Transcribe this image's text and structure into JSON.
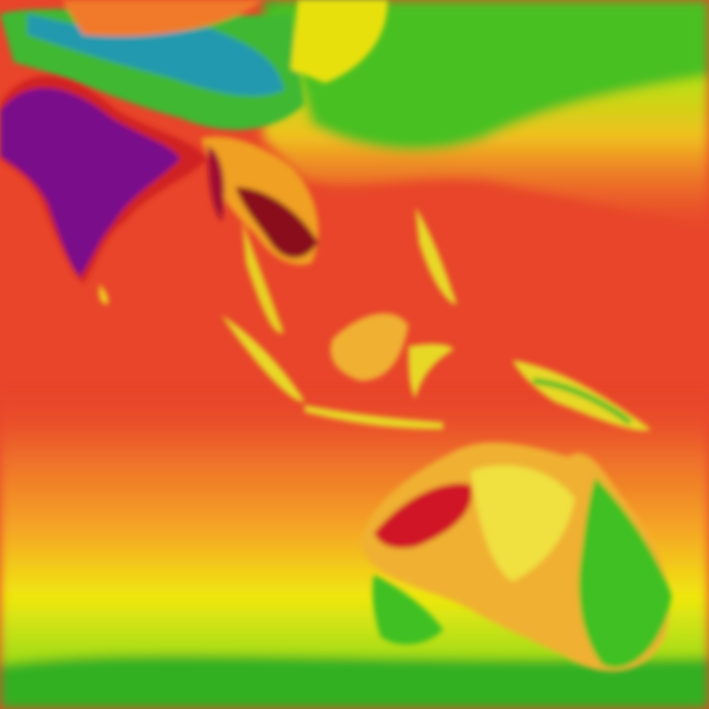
{
  "map": {
    "kind": "temperature-heatmap",
    "palette": {
      "hottest": "#7a0a8a",
      "very_hot": "#8a0a1e",
      "hot": "#e8452a",
      "warm": "#f07a2a",
      "mild": "#f5c020",
      "cool": "#e8f010",
      "cold": "#40c020",
      "coldest": "#1a8fd8"
    }
  }
}
